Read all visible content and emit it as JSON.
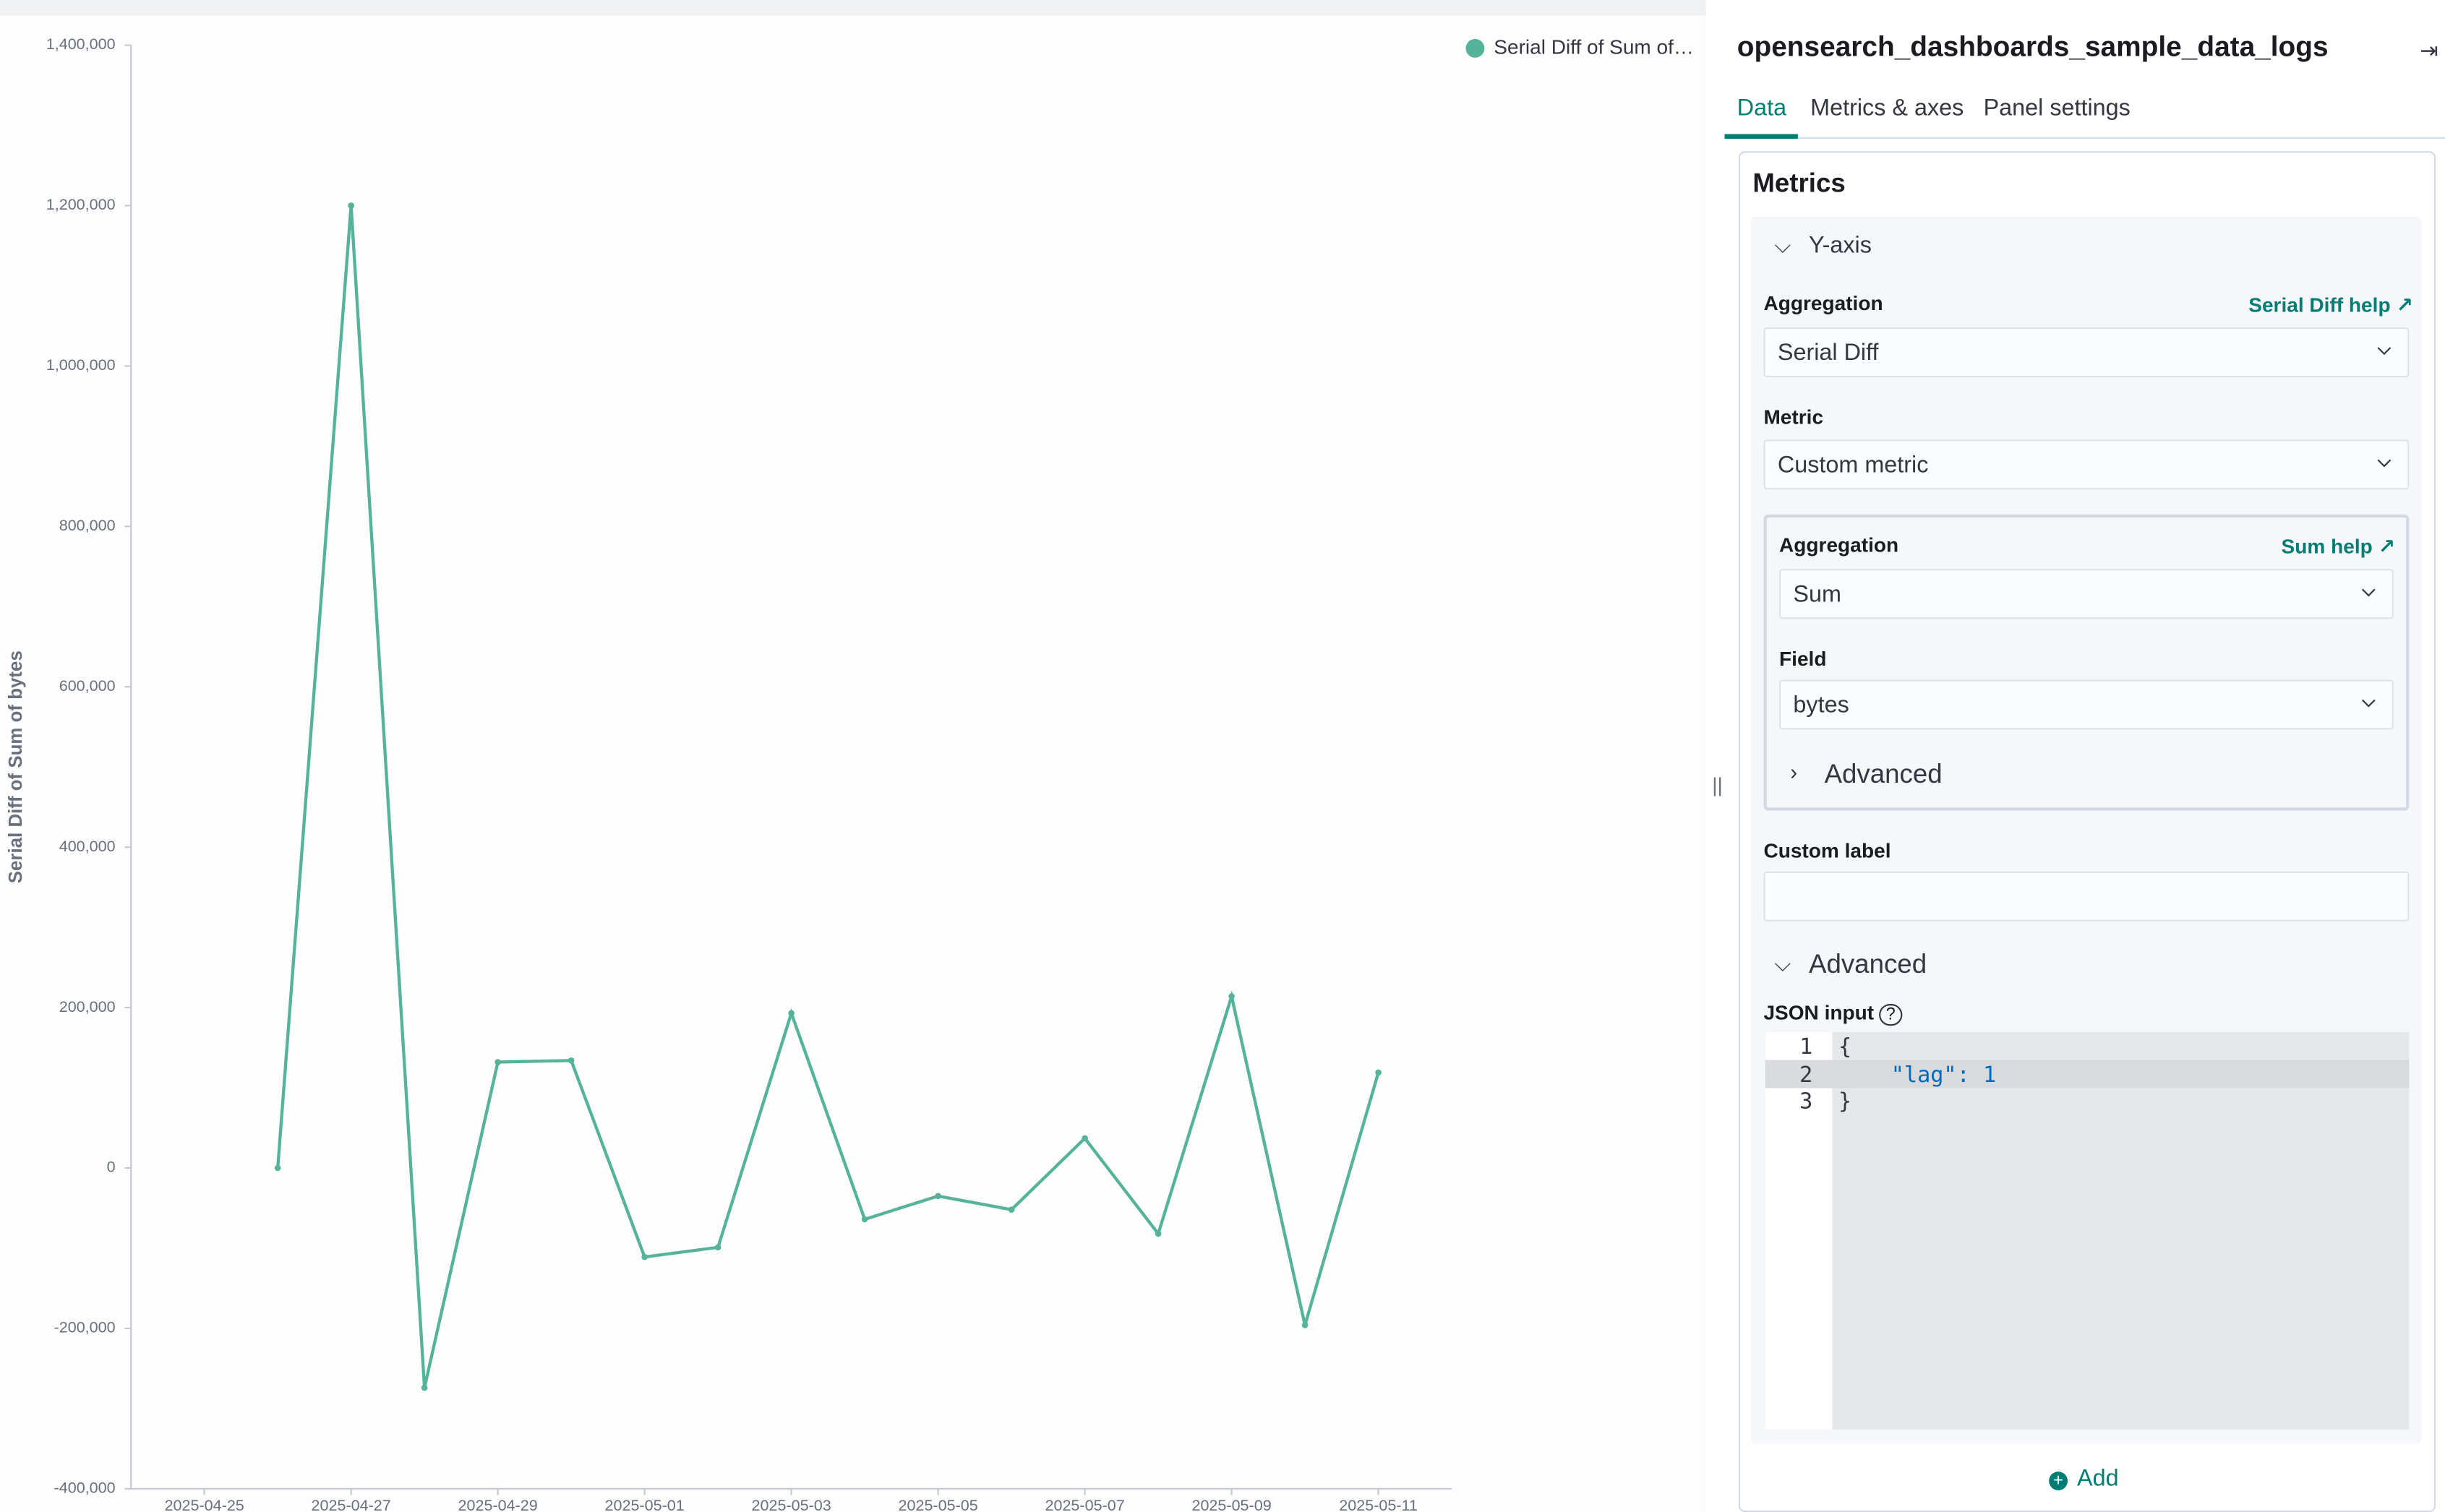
{
  "chart_data": {
    "type": "line",
    "y_label": "Serial Diff of Sum of bytes",
    "x": [
      "2025-04-26",
      "2025-04-27",
      "2025-04-28",
      "2025-04-29",
      "2025-04-30",
      "2025-05-01",
      "2025-05-02",
      "2025-05-03",
      "2025-05-04",
      "2025-05-05",
      "2025-05-06",
      "2025-05-07",
      "2025-05-08",
      "2025-05-09",
      "2025-05-10",
      "2025-05-11"
    ],
    "series": [
      {
        "name": "Serial Diff of Sum of…",
        "color": "#54b399",
        "values": [
          0,
          1200000,
          -274000,
          132000,
          134000,
          -111000,
          -99000,
          193000,
          -64000,
          -35000,
          -52000,
          37000,
          -82000,
          214000,
          -196000,
          119000
        ]
      }
    ],
    "xlim": [
      "2025-04-24",
      "2025-05-12"
    ],
    "xticks": [
      "2025-04-25",
      "2025-04-27",
      "2025-04-29",
      "2025-05-01",
      "2025-05-03",
      "2025-05-05",
      "2025-05-07",
      "2025-05-09",
      "2025-05-11"
    ],
    "ylim": [
      -400000,
      1400000
    ],
    "yticks": [
      {
        "value": -400000,
        "label": "-400,000"
      },
      {
        "value": -200000,
        "label": "-200,000"
      },
      0,
      {
        "value": 200000,
        "label": "200,000"
      },
      {
        "value": 400000,
        "label": "400,000"
      },
      {
        "value": 600000,
        "label": "600,000"
      },
      {
        "value": 800000,
        "label": "800,000"
      },
      {
        "value": 1000000,
        "label": "1,000,000"
      },
      {
        "value": 1200000,
        "label": "1,200,000"
      },
      {
        "value": 1400000,
        "label": "1,400,000"
      }
    ],
    "grid": false,
    "legend": "top-right"
  },
  "editor": {
    "index_title": "opensearch_dashboards_sample_data_logs",
    "tabs": [
      "Data",
      "Metrics & axes",
      "Panel settings"
    ],
    "section_title": "Metrics",
    "y_axis": {
      "title": "Y-axis",
      "aggregation_label": "Aggregation",
      "help_link": "Serial Diff help",
      "aggregation": "Serial Diff",
      "metric_label": "Metric",
      "metric": "Custom metric",
      "custom_label": "Custom label",
      "advanced": "Advanced",
      "json_label": "JSON input"
    },
    "custom_metric": {
      "aggregation_label": "Aggregation",
      "help_link": "Sum help",
      "aggregation": "Sum",
      "field_label": "Field",
      "field": "bytes",
      "advanced": "Advanced"
    },
    "json": {
      "line_numbers": [
        "1",
        "2",
        "3"
      ],
      "lines": [
        "{",
        "    \"lag\": 1",
        "}"
      ]
    },
    "add_button": "Add"
  }
}
